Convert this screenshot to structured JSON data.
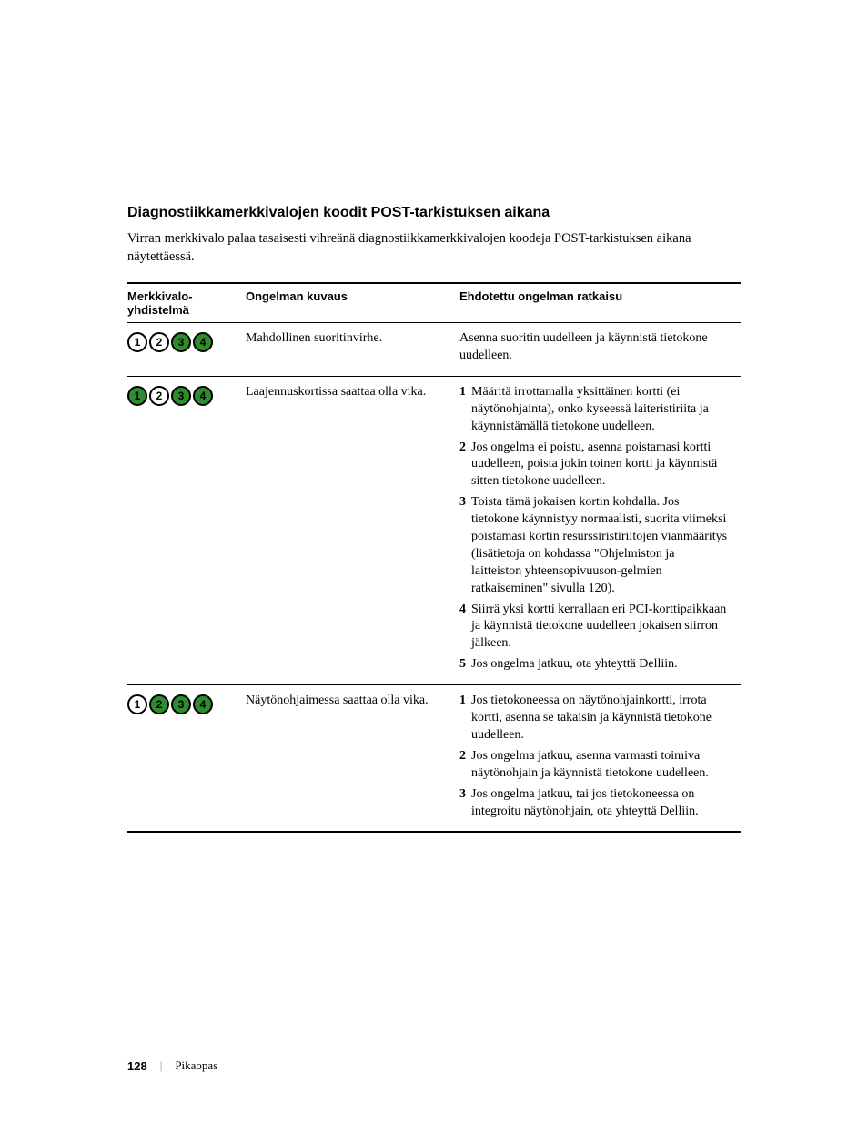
{
  "section_title": "Diagnostiikkamerkkivalojen koodit POST-tarkistuksen aikana",
  "intro": "Virran merkkivalo palaa tasaisesti vihreänä diagnostiikkamerkkivalojen koodeja POST-tarkistuksen aikana näytettäessä.",
  "headers": {
    "pattern": "Merkkivalo-\nyhdistelmä",
    "description": "Ongelman kuvaus",
    "solution": "Ehdotettu ongelman ratkaisu"
  },
  "light_on_color": "#2e8b2e",
  "light_off_color": "#ffffff",
  "rows": [
    {
      "pattern": [
        false,
        false,
        true,
        true
      ],
      "description": "Mahdollinen suoritinvirhe.",
      "solutions": [
        {
          "num": "",
          "text": "Asenna suoritin uudelleen ja käynnistä tietokone uudelleen."
        }
      ]
    },
    {
      "pattern": [
        true,
        false,
        true,
        true
      ],
      "description": "Laajennuskortissa saattaa olla vika.",
      "solutions": [
        {
          "num": "1",
          "text": "Määritä irrottamalla yksittäinen kortti (ei näytönohjainta), onko kyseessä laiteristiriita ja käynnistämällä tietokone uudelleen."
        },
        {
          "num": "2",
          "text": "Jos ongelma ei poistu, asenna poistamasi kortti uudelleen, poista jokin toinen kortti ja käynnistä sitten tietokone uudelleen."
        },
        {
          "num": "3",
          "text": "Toista tämä jokaisen kortin kohdalla. Jos tietokone käynnistyy normaalisti, suorita viimeksi poistamasi kortin resurssiristiriitojen vianmääritys (lisätietoja on kohdassa \"Ohjelmiston ja laitteiston yhteensopivuuson-gelmien ratkaiseminen\" sivulla 120)."
        },
        {
          "num": "4",
          "text": "Siirrä yksi kortti kerrallaan eri PCI-korttipaikkaan ja käynnistä tietokone uudelleen jokaisen siirron jälkeen."
        },
        {
          "num": "5",
          "text": "Jos ongelma jatkuu, ota yhteyttä Delliin."
        }
      ]
    },
    {
      "pattern": [
        false,
        true,
        true,
        true
      ],
      "description": "Näytönohjaimessa saattaa olla vika.",
      "solutions": [
        {
          "num": "1",
          "text": "Jos tietokoneessa on näytönohjainkortti, irrota kortti, asenna se takaisin ja käynnistä tietokone uudelleen."
        },
        {
          "num": "2",
          "text": "Jos ongelma jatkuu, asenna varmasti toimiva näytönohjain ja käynnistä tietokone uudelleen."
        },
        {
          "num": "3",
          "text": "Jos ongelma jatkuu, tai jos tietokoneessa on integroitu näytönohjain, ota yhteyttä Delliin."
        }
      ]
    }
  ],
  "footer": {
    "page": "128",
    "label": "Pikaopas"
  }
}
